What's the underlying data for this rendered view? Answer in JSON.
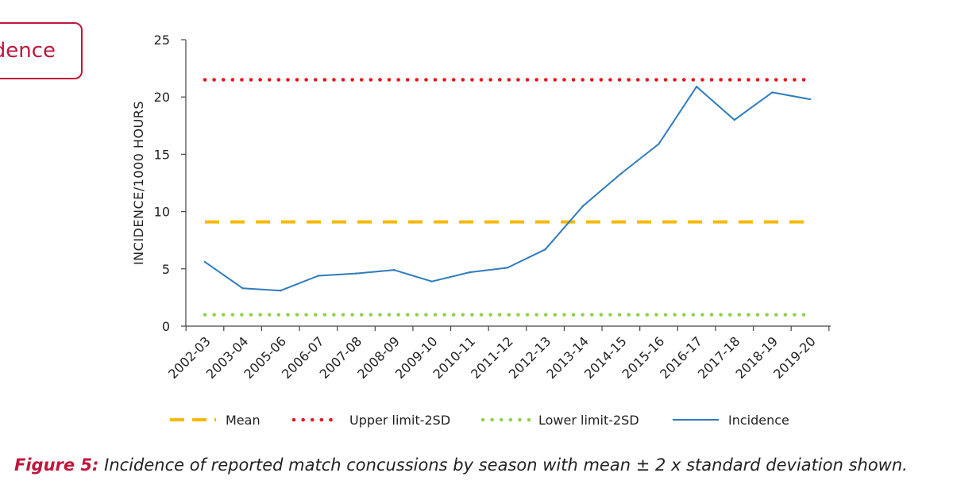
{
  "badge": {
    "label": "dence"
  },
  "chart_data": {
    "type": "line",
    "title": "",
    "xlabel": "",
    "ylabel": "INCIDENCE/1000 HOURS",
    "ylim": [
      0,
      25
    ],
    "yticks": [
      0,
      5,
      10,
      15,
      20,
      25
    ],
    "categories": [
      "2002-03",
      "2003-04",
      "2005-06",
      "2006-07",
      "2007-08",
      "2008-09",
      "2009-10",
      "2010-11",
      "2011-12",
      "2012-13",
      "2013-14",
      "2014-15",
      "2015-16",
      "2016-17",
      "2017-18",
      "2018-19",
      "2019-20"
    ],
    "series": [
      {
        "name": "Mean",
        "style": "dashed",
        "color": "#f5b800",
        "values": [
          9.1,
          9.1,
          9.1,
          9.1,
          9.1,
          9.1,
          9.1,
          9.1,
          9.1,
          9.1,
          9.1,
          9.1,
          9.1,
          9.1,
          9.1,
          9.1,
          9.1
        ]
      },
      {
        "name": "Upper limit-2SD",
        "style": "dotted",
        "color": "#e8141e",
        "values": [
          21.5,
          21.5,
          21.5,
          21.5,
          21.5,
          21.5,
          21.5,
          21.5,
          21.5,
          21.5,
          21.5,
          21.5,
          21.5,
          21.5,
          21.5,
          21.5,
          21.5
        ]
      },
      {
        "name": "Lower limit-2SD",
        "style": "dotted",
        "color": "#8fd14f",
        "values": [
          1.0,
          1.0,
          1.0,
          1.0,
          1.0,
          1.0,
          1.0,
          1.0,
          1.0,
          1.0,
          1.0,
          1.0,
          1.0,
          1.0,
          1.0,
          1.0,
          1.0
        ]
      },
      {
        "name": "Incidence",
        "style": "solid",
        "color": "#2e7bbf",
        "values": [
          5.6,
          3.3,
          3.1,
          4.4,
          4.6,
          4.9,
          3.9,
          4.7,
          5.1,
          6.7,
          10.5,
          13.3,
          15.9,
          20.9,
          18.0,
          20.4,
          19.8
        ]
      }
    ],
    "legend": "bottom"
  },
  "caption": {
    "label": "Figure 5:",
    "text": " Incidence of reported match concussions by season with mean ± 2 x standard deviation shown."
  }
}
